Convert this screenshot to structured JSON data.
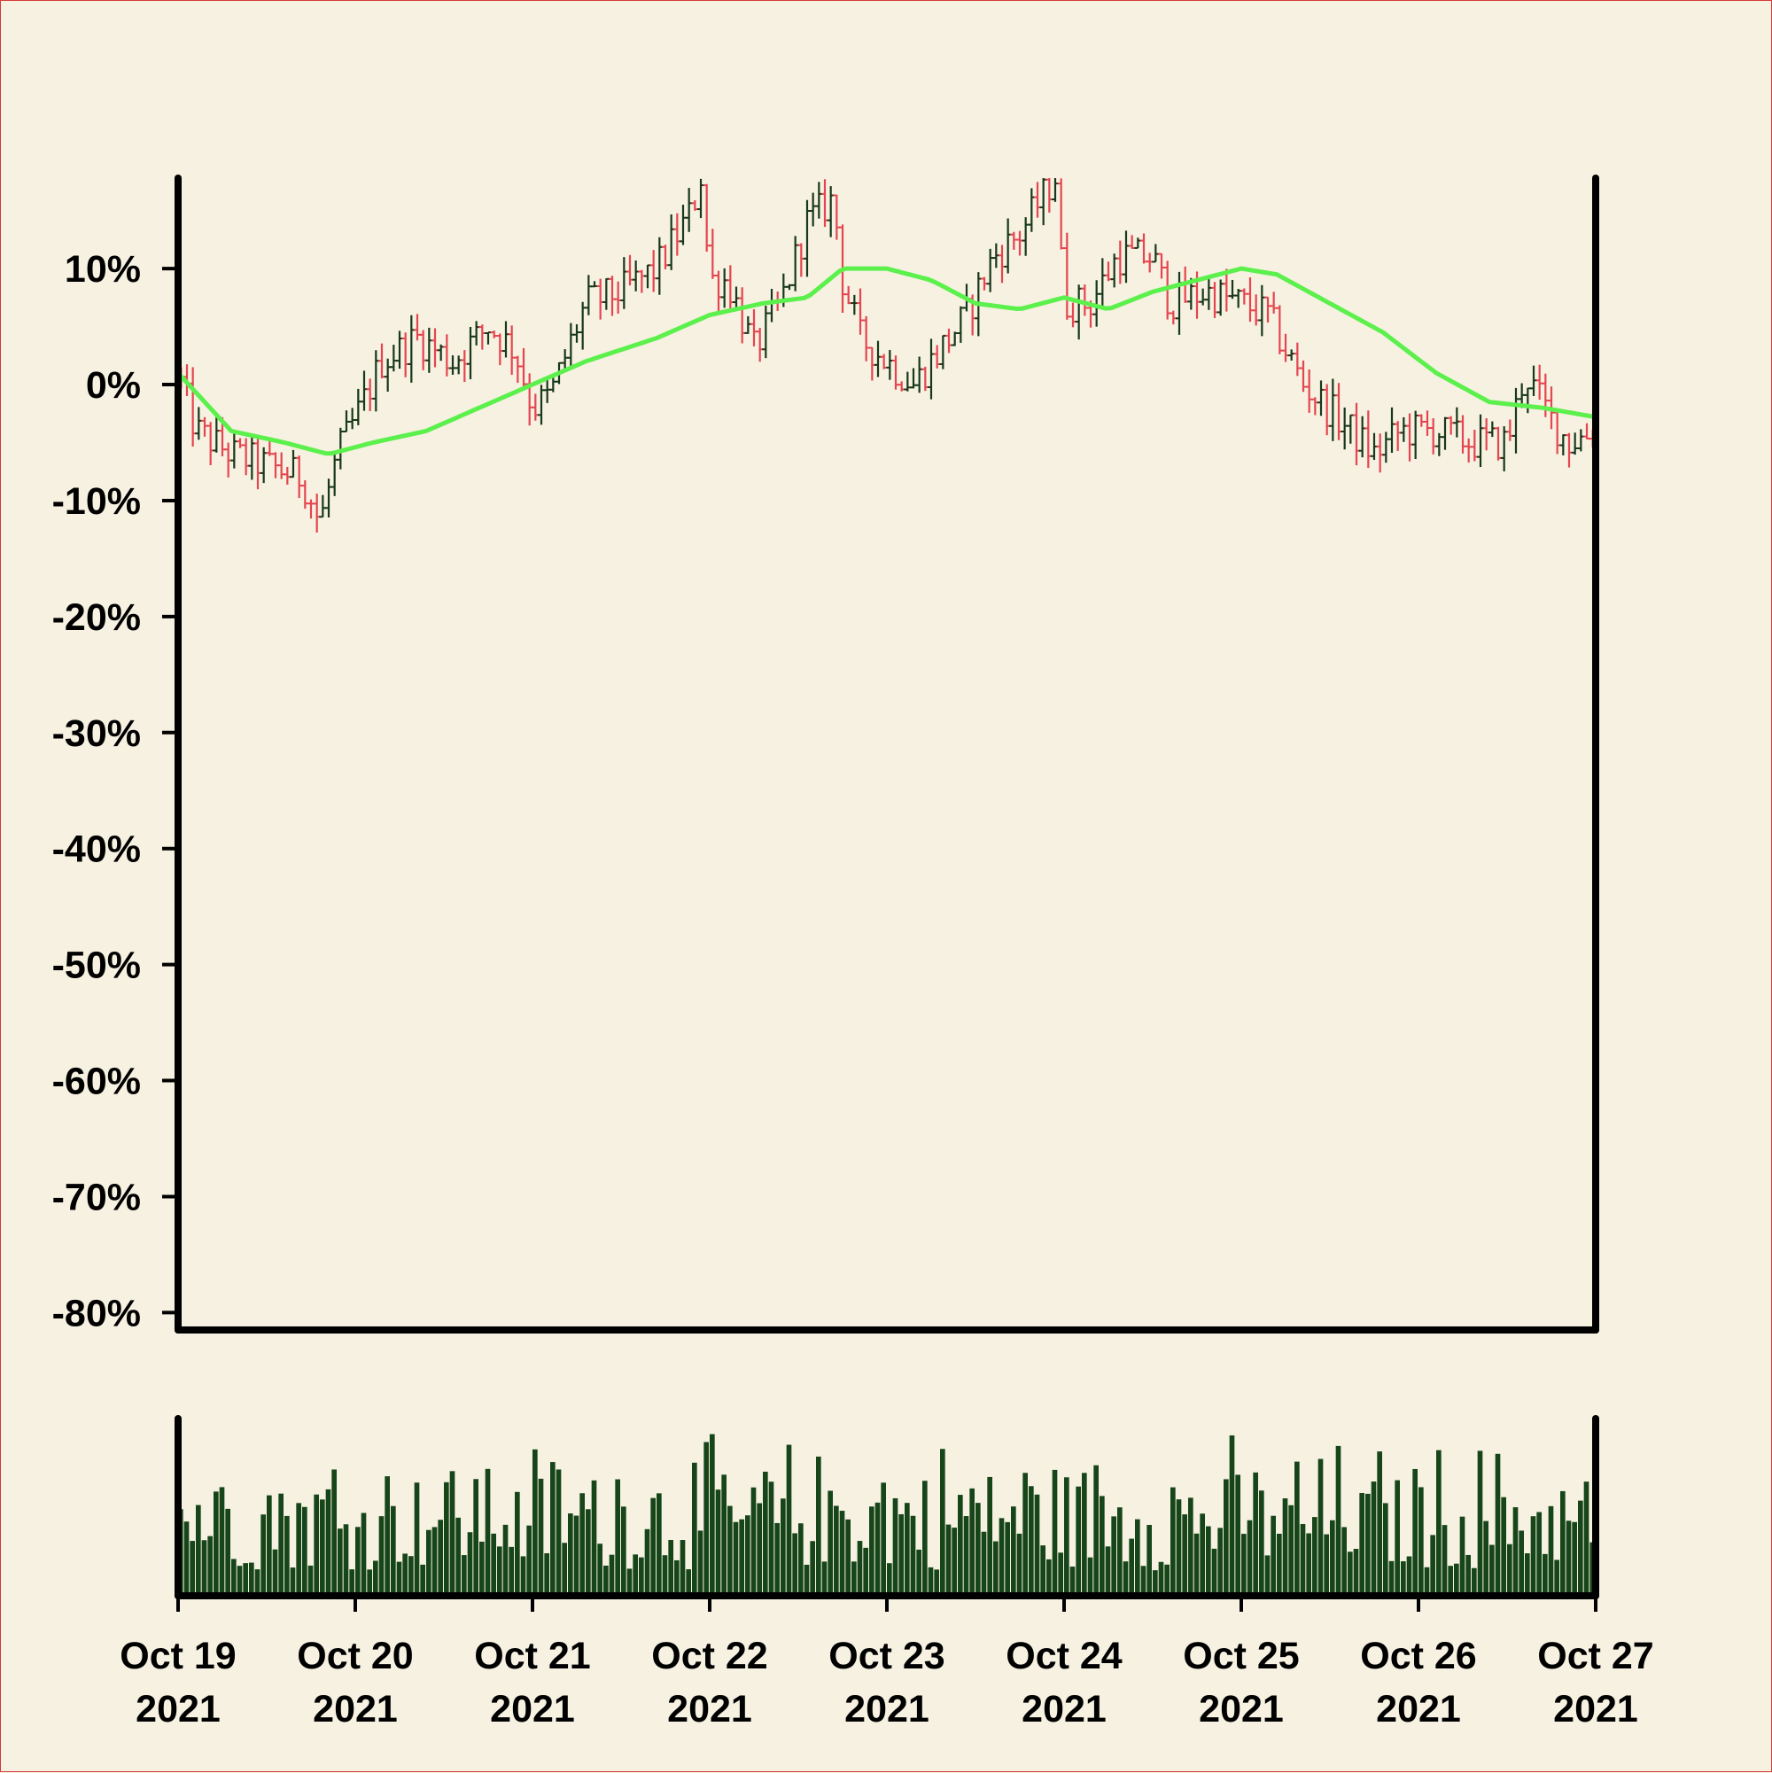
{
  "colors": {
    "background": "#f6f1e1",
    "border": "#d43a3a",
    "axis": "#000000",
    "up_bar": "#17381a",
    "down_bar": "#e5454f",
    "moving_average": "#5cf04c",
    "volume": "#17451a"
  },
  "chart_data": {
    "type": "ohlc",
    "title": "",
    "xlabel": "",
    "ylabel": "",
    "y_axis": {
      "unit": "%",
      "ticks": [
        10,
        0,
        -10,
        -20,
        -30,
        -40,
        -50,
        -60,
        -70,
        -80
      ],
      "tick_labels": [
        "10%",
        "0%",
        "-10%",
        "-20%",
        "-30%",
        "-40%",
        "-50%",
        "-60%",
        "-70%",
        "-80%"
      ],
      "ylim": [
        -81.5,
        17.8
      ]
    },
    "x_axis": {
      "start": "2021-10-19",
      "end": "2021-10-27",
      "ticks": [
        "2021-10-19",
        "2021-10-20",
        "2021-10-21",
        "2021-10-22",
        "2021-10-23",
        "2021-10-24",
        "2021-10-25",
        "2021-10-26",
        "2021-10-27"
      ],
      "tick_labels": [
        {
          "line1": "Oct 19",
          "line2": "2021"
        },
        {
          "line1": "Oct 20",
          "line2": "2021"
        },
        {
          "line1": "Oct 21",
          "line2": "2021"
        },
        {
          "line1": "Oct 22",
          "line2": "2021"
        },
        {
          "line1": "Oct 23",
          "line2": "2021"
        },
        {
          "line1": "Oct 24",
          "line2": "2021"
        },
        {
          "line1": "Oct 25",
          "line2": "2021"
        },
        {
          "line1": "Oct 26",
          "line2": "2021"
        },
        {
          "line1": "Oct 27",
          "line2": "2021"
        }
      ]
    },
    "grid": false,
    "legend": "none",
    "price_path_approx": {
      "unit": "%",
      "bars_per_day": 30,
      "note_values_are_close_percent_at_day_offsets": true,
      "points": [
        [
          0.0,
          1
        ],
        [
          0.1,
          -4
        ],
        [
          0.3,
          -6
        ],
        [
          0.5,
          -7
        ],
        [
          0.7,
          -8
        ],
        [
          0.8,
          -12
        ],
        [
          0.9,
          -6
        ],
        [
          1.0,
          -3
        ],
        [
          1.15,
          2
        ],
        [
          1.35,
          4
        ],
        [
          1.55,
          2
        ],
        [
          1.75,
          5
        ],
        [
          1.9,
          3
        ],
        [
          2.0,
          -2
        ],
        [
          2.1,
          -1
        ],
        [
          2.3,
          7
        ],
        [
          2.5,
          8
        ],
        [
          2.7,
          10
        ],
        [
          2.9,
          15
        ],
        [
          2.95,
          18
        ],
        [
          3.0,
          9
        ],
        [
          3.1,
          9
        ],
        [
          3.25,
          3
        ],
        [
          3.4,
          7
        ],
        [
          3.55,
          14
        ],
        [
          3.7,
          16
        ],
        [
          3.75,
          9
        ],
        [
          3.85,
          4
        ],
        [
          4.0,
          2
        ],
        [
          4.15,
          0
        ],
        [
          4.3,
          3
        ],
        [
          4.45,
          6
        ],
        [
          4.6,
          11
        ],
        [
          4.75,
          13
        ],
        [
          4.95,
          18
        ],
        [
          5.0,
          7
        ],
        [
          5.15,
          7
        ],
        [
          5.3,
          11
        ],
        [
          5.5,
          11
        ],
        [
          5.6,
          7
        ],
        [
          5.8,
          8
        ],
        [
          6.0,
          7
        ],
        [
          6.15,
          6
        ],
        [
          6.35,
          0
        ],
        [
          6.55,
          -3
        ],
        [
          6.75,
          -6
        ],
        [
          6.9,
          -4
        ],
        [
          7.1,
          -4
        ],
        [
          7.3,
          -5
        ],
        [
          7.5,
          -5
        ],
        [
          7.6,
          1
        ],
        [
          7.75,
          -3
        ],
        [
          7.85,
          -5
        ],
        [
          8.0,
          -4
        ]
      ]
    },
    "moving_average": {
      "name": "",
      "points": [
        [
          0.0,
          1
        ],
        [
          0.3,
          -4
        ],
        [
          0.6,
          -5
        ],
        [
          0.85,
          -6
        ],
        [
          1.1,
          -5
        ],
        [
          1.4,
          -4
        ],
        [
          1.7,
          -2
        ],
        [
          2.0,
          0
        ],
        [
          2.3,
          2
        ],
        [
          2.7,
          4
        ],
        [
          3.0,
          6
        ],
        [
          3.3,
          7
        ],
        [
          3.55,
          7.5
        ],
        [
          3.75,
          10
        ],
        [
          4.0,
          10
        ],
        [
          4.25,
          9
        ],
        [
          4.5,
          7
        ],
        [
          4.75,
          6.5
        ],
        [
          5.0,
          7.5
        ],
        [
          5.25,
          6.5
        ],
        [
          5.5,
          8
        ],
        [
          5.75,
          9
        ],
        [
          6.0,
          10
        ],
        [
          6.2,
          9.5
        ],
        [
          6.5,
          7
        ],
        [
          6.8,
          4.5
        ],
        [
          7.1,
          1
        ],
        [
          7.4,
          -1.5
        ],
        [
          7.7,
          -2
        ],
        [
          8.0,
          -2.8
        ]
      ]
    },
    "volume": {
      "unit": "",
      "bars_per_day": 30,
      "relative_level_approx": "0.2-1.0 of panel height, random"
    }
  }
}
